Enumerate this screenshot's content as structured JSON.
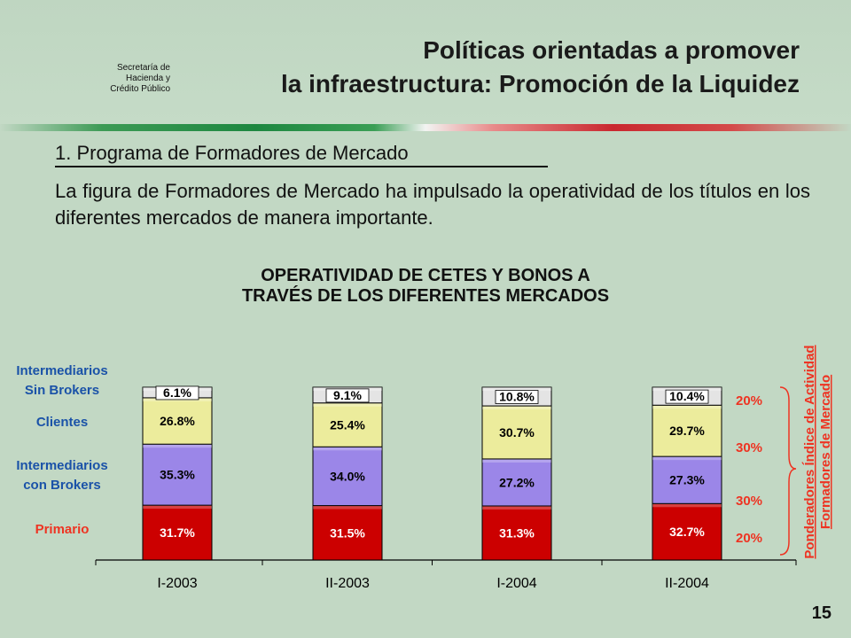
{
  "header": {
    "ministry_lines": [
      "Secretaría de",
      "Hacienda y",
      "Crédito Público"
    ],
    "title_lines": [
      "Políticas orientadas a promover",
      "la infraestructura: Promoción de la Liquidez"
    ]
  },
  "section": {
    "heading": "1. Programa de Formadores de Mercado",
    "paragraph": "La figura de Formadores de Mercado ha impulsado la operatividad de los títulos en los diferentes mercados de manera importante."
  },
  "chart_title_lines": [
    "OPERATIVIDAD DE CETES Y BONOS A",
    "TRAVÉS DE LOS DIFERENTES MERCADOS"
  ],
  "chart_data": {
    "type": "bar",
    "stacked": true,
    "categories": [
      "I-2003",
      "II-2003",
      "I-2004",
      "II-2004"
    ],
    "series": [
      {
        "name": "Primario",
        "values": [
          31.7,
          31.5,
          31.3,
          32.7
        ],
        "color": "#cc0000",
        "label_color": "#ffffff"
      },
      {
        "name": "Intermediarios con Brokers",
        "values": [
          35.3,
          34.0,
          27.2,
          27.3
        ],
        "color": "#9b86e8",
        "label_color": "#000000"
      },
      {
        "name": "Clientes",
        "values": [
          26.8,
          25.4,
          30.7,
          29.7
        ],
        "color": "#ecec9c",
        "label_color": "#000000"
      },
      {
        "name": "Intermediarios Sin Brokers",
        "values": [
          6.1,
          9.1,
          10.8,
          10.4
        ],
        "color": "#e4e4e4",
        "label_color": "#000000"
      }
    ],
    "series_label_lines": [
      [
        "Primario"
      ],
      [
        "Intermediarios",
        "con Brokers"
      ],
      [
        "Clientes"
      ],
      [
        "Intermediarios",
        "Sin Brokers"
      ]
    ],
    "series_label_colors": [
      "#ee3322",
      "#1a52a8",
      "#1a52a8",
      "#1a52a8"
    ],
    "value_suffix": "%",
    "ylim": [
      0,
      100
    ],
    "grid": false,
    "weights": {
      "values": [
        "20%",
        "30%",
        "30%",
        "20%"
      ],
      "caption_lines": [
        "Ponderadores Índice de Actividad",
        "Formadores de Mercado"
      ],
      "color": "#ee3322"
    }
  },
  "page_number": "15"
}
